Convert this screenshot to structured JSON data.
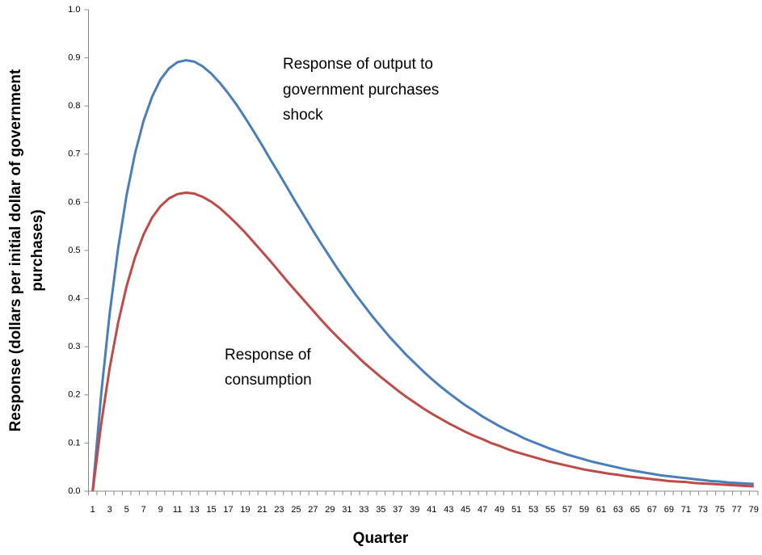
{
  "chart_data": {
    "type": "line",
    "ylabel_lines": [
      "Response (dollars per initial dollar of government",
      "purchases)"
    ],
    "xlabel": "Quarter",
    "annotations": [
      {
        "lines": [
          "Response of output to",
          "government purchases",
          "shock"
        ]
      },
      {
        "lines": [
          "Response of",
          "consumption"
        ]
      }
    ],
    "categories": [
      1,
      null,
      3,
      null,
      5,
      null,
      7,
      null,
      9,
      null,
      11,
      null,
      13,
      null,
      15,
      null,
      17,
      null,
      19,
      null,
      21,
      null,
      23,
      null,
      25,
      null,
      27,
      null,
      29,
      null,
      31,
      null,
      33,
      null,
      35,
      null,
      37,
      null,
      39,
      null,
      41,
      null,
      43,
      null,
      45,
      null,
      47,
      null,
      49,
      null,
      51,
      null,
      53,
      null,
      55,
      null,
      57,
      null,
      59,
      null,
      61,
      null,
      63,
      null,
      65,
      null,
      67,
      null,
      69,
      null,
      71,
      null,
      73,
      null,
      75,
      null,
      77,
      null,
      79
    ],
    "series": [
      {
        "color": "#4a7ebb",
        "values": [
          0,
          0.202,
          0.369,
          0.505,
          0.615,
          0.702,
          0.769,
          0.819,
          0.855,
          0.878,
          0.891,
          0.895,
          0.892,
          0.882,
          0.867,
          0.848,
          0.826,
          0.802,
          0.775,
          0.747,
          0.718,
          0.688,
          0.659,
          0.629,
          0.599,
          0.57,
          0.541,
          0.513,
          0.486,
          0.459,
          0.434,
          0.409,
          0.386,
          0.363,
          0.342,
          0.321,
          0.302,
          0.283,
          0.266,
          0.249,
          0.233,
          0.218,
          0.204,
          0.191,
          0.178,
          0.167,
          0.155,
          0.145,
          0.135,
          0.126,
          0.118,
          0.109,
          0.102,
          0.095,
          0.088,
          0.082,
          0.076,
          0.071,
          0.066,
          0.061,
          0.057,
          0.053,
          0.049,
          0.045,
          0.042,
          0.039,
          0.036,
          0.033,
          0.031,
          0.029,
          0.027,
          0.025,
          0.023,
          0.021,
          0.02,
          0.018,
          0.017,
          0.016,
          0.015
        ]
      },
      {
        "color": "#be4b48",
        "values": [
          0,
          0.14,
          0.256,
          0.35,
          0.426,
          0.486,
          0.533,
          0.568,
          0.592,
          0.608,
          0.617,
          0.62,
          0.618,
          0.611,
          0.601,
          0.588,
          0.572,
          0.555,
          0.537,
          0.517,
          0.497,
          0.477,
          0.456,
          0.435,
          0.415,
          0.395,
          0.375,
          0.355,
          0.336,
          0.318,
          0.301,
          0.284,
          0.267,
          0.252,
          0.237,
          0.223,
          0.209,
          0.196,
          0.184,
          0.172,
          0.161,
          0.151,
          0.141,
          0.132,
          0.123,
          0.115,
          0.108,
          0.1,
          0.094,
          0.087,
          0.081,
          0.076,
          0.071,
          0.066,
          0.061,
          0.057,
          0.053,
          0.049,
          0.045,
          0.042,
          0.039,
          0.036,
          0.034,
          0.031,
          0.029,
          0.027,
          0.025,
          0.023,
          0.021,
          0.02,
          0.019,
          0.017,
          0.016,
          0.015,
          0.014,
          0.013,
          0.012,
          0.011,
          0.01
        ]
      }
    ],
    "ylim": [
      0,
      1
    ],
    "yticks": [
      {
        "value": 0,
        "label": "0.0"
      },
      0.1,
      0.2,
      0.3,
      0.4,
      0.5,
      0.6,
      0.7,
      0.8,
      0.9,
      {
        "value": 1,
        "label": "1.0"
      }
    ]
  }
}
